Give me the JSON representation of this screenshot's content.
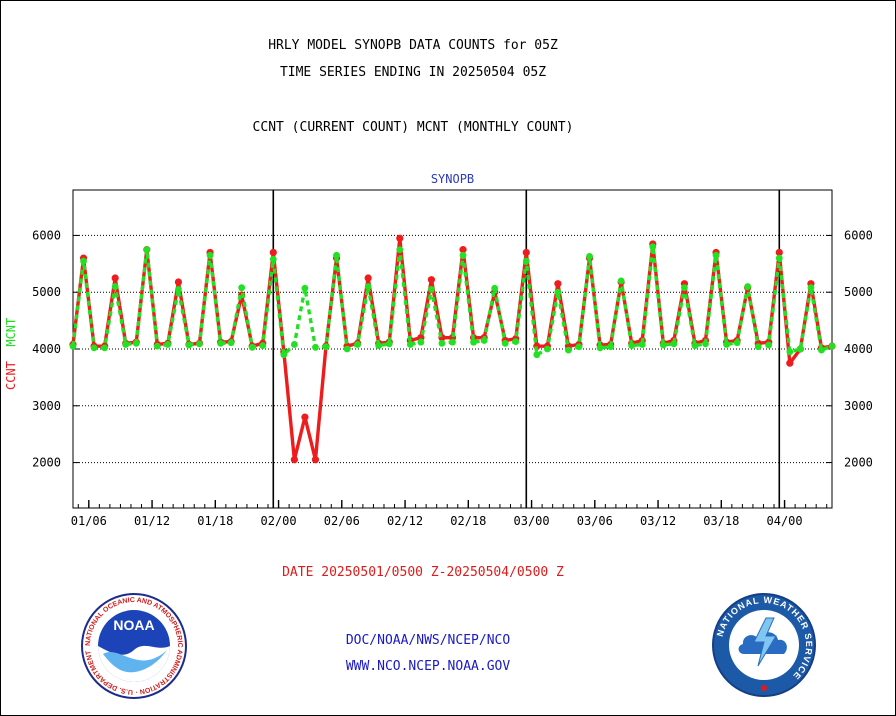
{
  "header": {
    "title_line1": "HRLY MODEL SYNOPB DATA COUNTS for 05Z",
    "title_line2": "TIME SERIES ENDING IN 20250504 05Z",
    "title_line3": "CCNT (CURRENT COUNT) MCNT (MONTHLY COUNT)",
    "subtitle": "SYNOPB"
  },
  "axis": {
    "ylabel_ccnt": "CCNT",
    "ylabel_mcnt": "MCNT"
  },
  "date_range": "DATE 20250501/0500 Z-20250504/0500 Z",
  "footer": {
    "line1": "DOC/NOAA/NWS/NCEP/NCO",
    "line2": "WWW.NCO.NCEP.NOAA.GOV"
  },
  "logos": {
    "noaa_name": "NOAA",
    "noaa_ring_text": "NATIONAL OCEANIC AND ATMOSPHERIC ADMINISTRATION · U.S. DEPARTMENT OF COMMERCE",
    "nws_ring_text": "NATIONAL WEATHER SERVICE"
  },
  "colors": {
    "ccnt": "#ee1c1c",
    "mcnt": "#22e022",
    "title_blue": "#2a3cb6",
    "footer_blue": "#1919c8",
    "daterange_red": "#e01a1a"
  },
  "chart_data": {
    "type": "line",
    "title": "HRLY MODEL SYNOPB DATA COUNTS for 05Z",
    "subtitle": "SYNOPB",
    "xlabel": "",
    "ylabel": "CCNT  MCNT",
    "xlim": [
      0,
      72
    ],
    "ylim": [
      1200,
      6800
    ],
    "yticks": [
      2000,
      3000,
      4000,
      5000,
      6000
    ],
    "xticks": [
      {
        "x": 1.5,
        "label": "01/06"
      },
      {
        "x": 7.5,
        "label": "01/12"
      },
      {
        "x": 13.5,
        "label": "01/18"
      },
      {
        "x": 19.5,
        "label": "02/00"
      },
      {
        "x": 25.5,
        "label": "02/06"
      },
      {
        "x": 31.5,
        "label": "02/12"
      },
      {
        "x": 37.5,
        "label": "02/18"
      },
      {
        "x": 43.5,
        "label": "03/00"
      },
      {
        "x": 49.5,
        "label": "03/06"
      },
      {
        "x": 55.5,
        "label": "03/12"
      },
      {
        "x": 61.5,
        "label": "03/18"
      },
      {
        "x": 67.5,
        "label": "04/00"
      }
    ],
    "day_separators": [
      19,
      43,
      67
    ],
    "grid": true,
    "series": [
      {
        "name": "CCNT",
        "color": "#ee1c1c",
        "style": "solid",
        "values": [
          4080,
          5600,
          4050,
          4050,
          5250,
          4100,
          4120,
          5750,
          4080,
          4100,
          5180,
          4080,
          4100,
          5700,
          4120,
          4130,
          4950,
          4050,
          4100,
          5700,
          3950,
          2050,
          2800,
          2050,
          4050,
          5600,
          4050,
          4100,
          5250,
          4100,
          4120,
          5950,
          4150,
          4200,
          5220,
          4200,
          4200,
          5750,
          4200,
          4200,
          5000,
          4150,
          4180,
          5700,
          4050,
          4050,
          5150,
          4050,
          4080,
          5600,
          4070,
          4080,
          5180,
          4100,
          4150,
          5850,
          4100,
          4150,
          5150,
          4100,
          4150,
          5700,
          4120,
          4150,
          5080,
          4100,
          4120,
          5700,
          3750,
          4000,
          5150,
          4020,
          4050
        ]
      },
      {
        "name": "MCNT",
        "color": "#22e022",
        "style": "dashed",
        "values": [
          4050,
          5550,
          4020,
          4020,
          5100,
          4080,
          4100,
          5750,
          4050,
          4080,
          5050,
          4070,
          4090,
          5650,
          4100,
          4110,
          5080,
          4030,
          4060,
          5580,
          3900,
          4080,
          5070,
          4030,
          4040,
          5650,
          4000,
          4080,
          5100,
          4060,
          4090,
          5750,
          4080,
          4120,
          5050,
          4100,
          4120,
          5650,
          4120,
          4150,
          5070,
          4100,
          4130,
          5550,
          3900,
          4000,
          5000,
          3980,
          4040,
          5630,
          4020,
          4040,
          5200,
          4060,
          4080,
          5800,
          4070,
          4090,
          5080,
          4060,
          4090,
          5650,
          4080,
          4110,
          5100,
          4040,
          4070,
          5600,
          3950,
          4000,
          5080,
          3980,
          4050
        ]
      }
    ]
  }
}
